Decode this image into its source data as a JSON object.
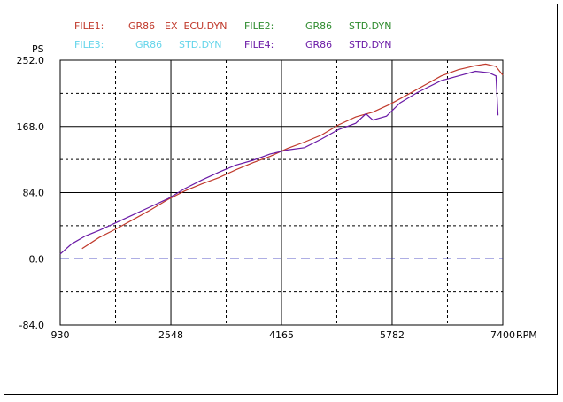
{
  "legend": [
    {
      "file": "FILE1:",
      "model": "GR86",
      "name": "EX  ECU.DYN",
      "color": "#c0392b"
    },
    {
      "file": "FILE2:",
      "model": "GR86",
      "name": "STD.DYN",
      "color": "#2e8b2e"
    },
    {
      "file": "FILE3:",
      "model": "GR86",
      "name": "STD.DYN",
      "color": "#63d4ea"
    },
    {
      "file": "FILE4:",
      "model": "GR86",
      "name": "STD.DYN",
      "color": "#6a1aa6"
    }
  ],
  "chart_data": {
    "type": "line",
    "ylabel": "PS",
    "xlabel": "RPM",
    "xlim": [
      930,
      7400
    ],
    "ylim": [
      -84,
      252
    ],
    "x_ticks": [
      930,
      2548,
      4165,
      5782,
      7400
    ],
    "y_ticks": [
      -84.0,
      0.0,
      84.0,
      168.0,
      252.0
    ],
    "y_tick_labels": [
      "-84.0",
      "0.0",
      "84.0",
      "168.0",
      "252.0"
    ],
    "x_tick_labels": [
      "930",
      "2548",
      "4165",
      "5782",
      "7400"
    ],
    "grid": true,
    "zero_line_color": "#2a2ab8",
    "series": [
      {
        "name": "FILE1",
        "color": "#c0392b",
        "points": [
          [
            1250,
            13
          ],
          [
            1500,
            27
          ],
          [
            1750,
            38
          ],
          [
            2000,
            50
          ],
          [
            2250,
            62
          ],
          [
            2500,
            75
          ],
          [
            2750,
            86
          ],
          [
            3000,
            95
          ],
          [
            3250,
            103
          ],
          [
            3500,
            113
          ],
          [
            3750,
            122
          ],
          [
            4000,
            130
          ],
          [
            4250,
            140
          ],
          [
            4500,
            148
          ],
          [
            4750,
            157
          ],
          [
            5000,
            170
          ],
          [
            5250,
            180
          ],
          [
            5500,
            186
          ],
          [
            5750,
            196
          ],
          [
            6000,
            208
          ],
          [
            6250,
            220
          ],
          [
            6500,
            232
          ],
          [
            6750,
            240
          ],
          [
            7000,
            245
          ],
          [
            7150,
            247
          ],
          [
            7300,
            244
          ],
          [
            7400,
            233
          ]
        ]
      },
      {
        "name": "FILE4",
        "color": "#6a1aa6",
        "points": [
          [
            930,
            6
          ],
          [
            1100,
            19
          ],
          [
            1300,
            29
          ],
          [
            1500,
            36
          ],
          [
            1750,
            46
          ],
          [
            2000,
            56
          ],
          [
            2250,
            66
          ],
          [
            2500,
            76
          ],
          [
            2750,
            89
          ],
          [
            3000,
            100
          ],
          [
            3250,
            110
          ],
          [
            3500,
            119
          ],
          [
            3750,
            125
          ],
          [
            4000,
            133
          ],
          [
            4250,
            138
          ],
          [
            4500,
            141
          ],
          [
            4750,
            152
          ],
          [
            5000,
            164
          ],
          [
            5250,
            172
          ],
          [
            5400,
            184
          ],
          [
            5500,
            176
          ],
          [
            5700,
            181
          ],
          [
            5900,
            198
          ],
          [
            6150,
            211
          ],
          [
            6500,
            226
          ],
          [
            6750,
            232
          ],
          [
            7000,
            238
          ],
          [
            7200,
            236
          ],
          [
            7300,
            232
          ],
          [
            7330,
            182
          ]
        ]
      }
    ]
  }
}
